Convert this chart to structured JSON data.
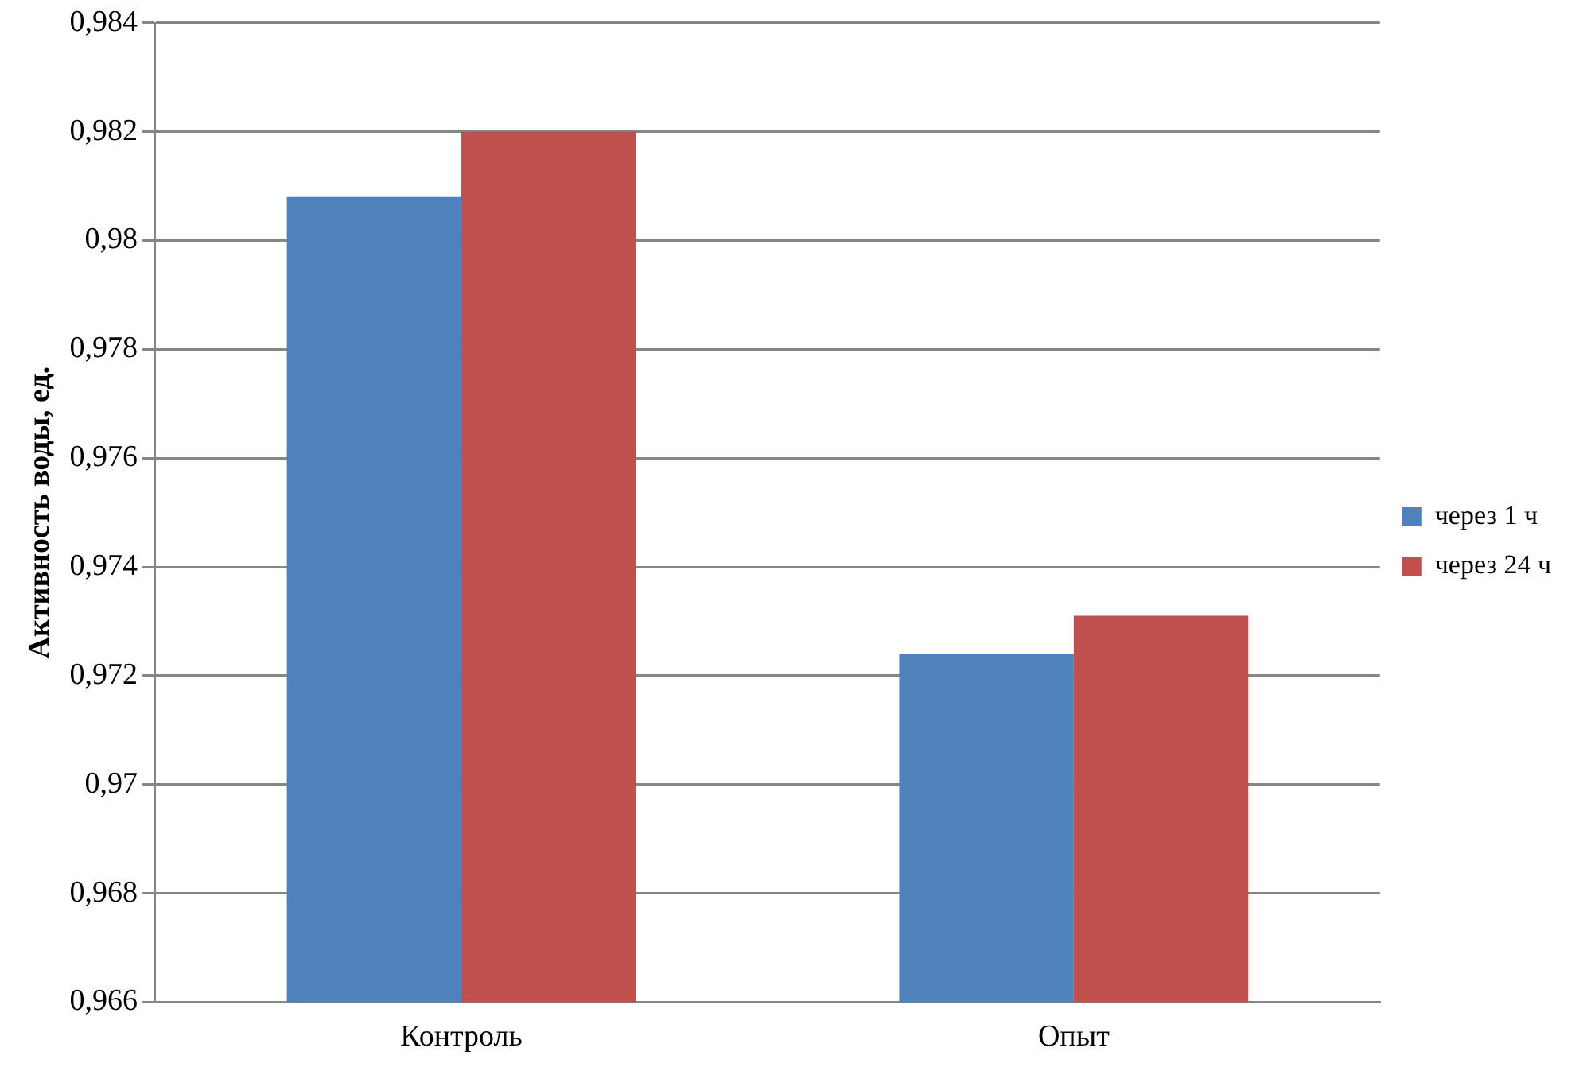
{
  "chart_data": {
    "type": "bar",
    "ylabel": "Активность воды, ед.",
    "categories": [
      "Контроль",
      "Опыт"
    ],
    "series": [
      {
        "name": "через 1 ч",
        "color": "#4f81bd",
        "values": [
          0.9808,
          0.9724
        ]
      },
      {
        "name": "через 24 ч",
        "color": "#c0504d",
        "values": [
          0.982,
          0.9731
        ]
      }
    ],
    "ylim": [
      0.966,
      0.984
    ],
    "yticks": [
      {
        "value": 0.966,
        "label": "0,966"
      },
      {
        "value": 0.968,
        "label": "0,968"
      },
      {
        "value": 0.97,
        "label": "0,97"
      },
      {
        "value": 0.972,
        "label": "0,972"
      },
      {
        "value": 0.974,
        "label": "0,974"
      },
      {
        "value": 0.976,
        "label": "0,976"
      },
      {
        "value": 0.978,
        "label": "0,978"
      },
      {
        "value": 0.98,
        "label": "0,98"
      },
      {
        "value": 0.982,
        "label": "0,982"
      },
      {
        "value": 0.984,
        "label": "0,984"
      }
    ],
    "grid": "y",
    "legend": "right"
  }
}
